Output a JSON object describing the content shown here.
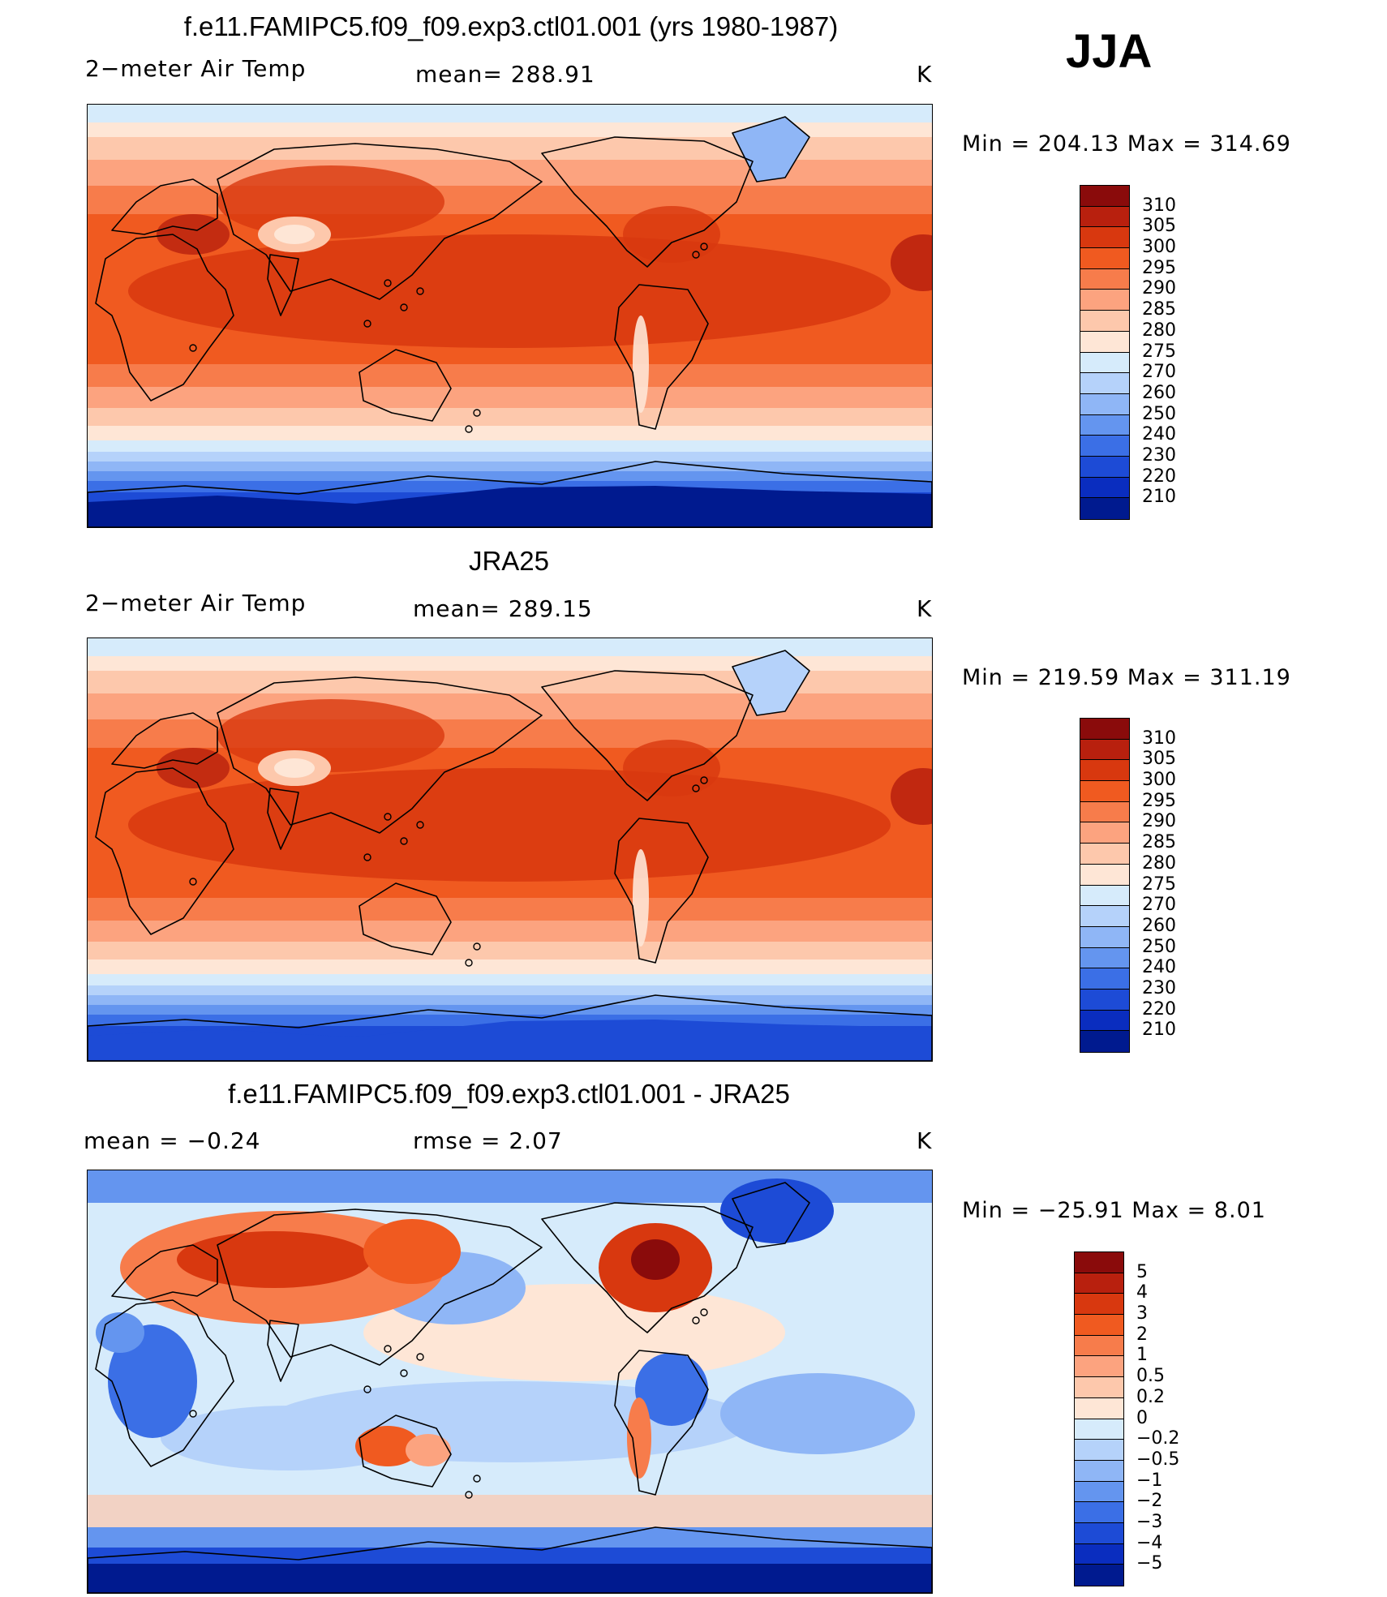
{
  "season": "JJA",
  "panels": [
    {
      "title": "f.e11.FAMIPC5.f09_f09.exp3.ctl01.001 (yrs 1980-1987)",
      "left_label": "2−meter Air Temp",
      "mid_label": "mean=  288.91",
      "unit": "K",
      "minmax": "Min  =  204.13  Max  =  314.69",
      "colorbar": {
        "labels": [
          "310",
          "305",
          "300",
          "295",
          "290",
          "285",
          "280",
          "275",
          "270",
          "260",
          "250",
          "240",
          "230",
          "220",
          "210"
        ],
        "colors": [
          "#8a0b0b",
          "#b8200e",
          "#d8380f",
          "#f05a20",
          "#f77c4b",
          "#fca37f",
          "#fdc8ac",
          "#fee6d6",
          "#d6ebfb",
          "#b5d2fa",
          "#8fb6f6",
          "#6495ef",
          "#3b6fe6",
          "#1d4bd6",
          "#0a2dbf",
          "#001a8f"
        ]
      },
      "map": {
        "style": "model",
        "legend_type": "temperature"
      }
    },
    {
      "title": "JRA25",
      "left_label": "2−meter Air Temp",
      "mid_label": "mean=  289.15",
      "unit": "K",
      "minmax": "Min  =  219.59  Max  =  311.19",
      "colorbar": {
        "labels": [
          "310",
          "305",
          "300",
          "295",
          "290",
          "285",
          "280",
          "275",
          "270",
          "260",
          "250",
          "240",
          "230",
          "220",
          "210"
        ],
        "colors": [
          "#8a0b0b",
          "#b8200e",
          "#d8380f",
          "#f05a20",
          "#f77c4b",
          "#fca37f",
          "#fdc8ac",
          "#fee6d6",
          "#d6ebfb",
          "#b5d2fa",
          "#8fb6f6",
          "#6495ef",
          "#3b6fe6",
          "#1d4bd6",
          "#0a2dbf",
          "#001a8f"
        ]
      },
      "map": {
        "style": "obs",
        "legend_type": "temperature"
      }
    },
    {
      "title": "f.e11.FAMIPC5.f09_f09.exp3.ctl01.001 - JRA25",
      "left_label": "mean  =     −0.24",
      "mid_label": "rmse  =      2.07",
      "unit": "K",
      "minmax": "Min  =  −25.91  Max  =       8.01",
      "colorbar": {
        "labels": [
          "5",
          "4",
          "3",
          "2",
          "1",
          "0.5",
          "0.2",
          "0",
          "−0.2",
          "−0.5",
          "−1",
          "−2",
          "−3",
          "−4",
          "−5"
        ],
        "colors": [
          "#8a0b0b",
          "#b8200e",
          "#d8380f",
          "#f05a20",
          "#f77c4b",
          "#fca37f",
          "#fdc8ac",
          "#fee6d6",
          "#d6ebfb",
          "#b5d2fa",
          "#8fb6f6",
          "#6495ef",
          "#3b6fe6",
          "#1d4bd6",
          "#0a2dbf",
          "#001a8f"
        ]
      },
      "map": {
        "style": "diff",
        "legend_type": "difference"
      }
    }
  ]
}
